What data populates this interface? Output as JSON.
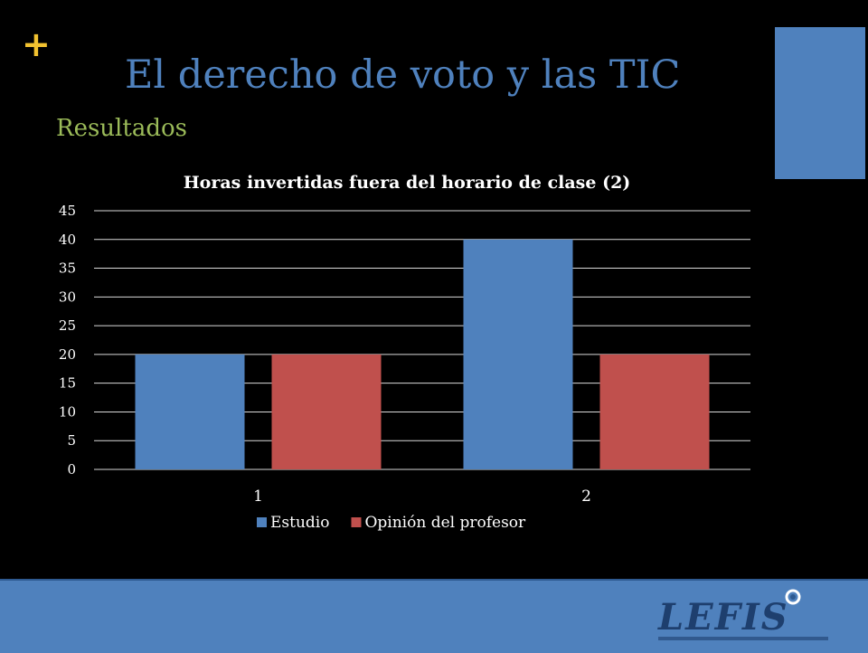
{
  "slide": {
    "plus_symbol": "+",
    "title": "El derecho de voto y las TIC",
    "subtitle": "Resultados",
    "logo_text": "LEFIS"
  },
  "colors": {
    "background": "#000000",
    "accent_blue": "#4f81bd",
    "accent_gold": "#f2c230",
    "subtitle_green": "#9bbb59",
    "series_estudio": "#4f81bd",
    "series_profesor": "#c0504d"
  },
  "chart_data": {
    "type": "bar",
    "title": "Horas invertidas fuera del horario de clase (2)",
    "categories": [
      "1",
      "2"
    ],
    "series": [
      {
        "name": "Estudio",
        "values": [
          20,
          40
        ],
        "color": "#4f81bd"
      },
      {
        "name": "Opinión del profesor",
        "values": [
          20,
          20
        ],
        "color": "#c0504d"
      }
    ],
    "xlabel": "",
    "ylabel": "",
    "ylim": [
      0,
      45
    ],
    "yticks": [
      0,
      5,
      10,
      15,
      20,
      25,
      30,
      35,
      40,
      45
    ],
    "grid": true,
    "legend": "bottom"
  }
}
